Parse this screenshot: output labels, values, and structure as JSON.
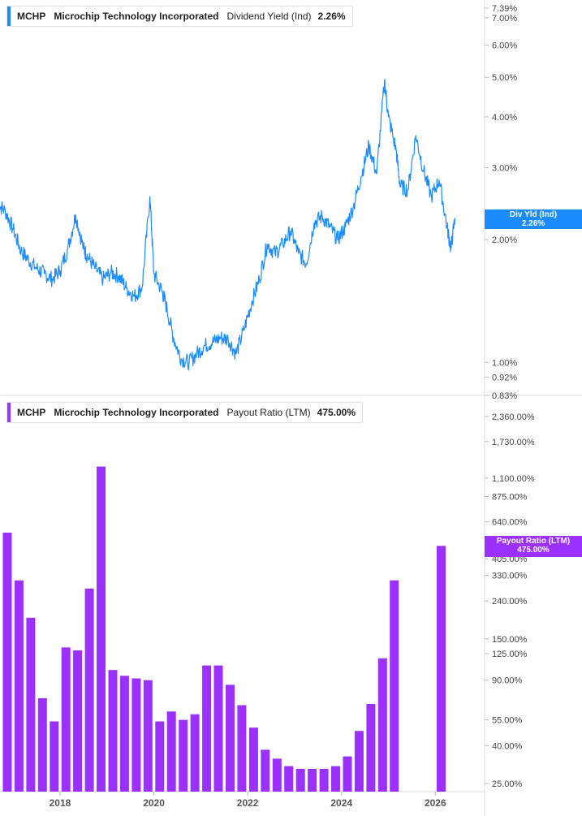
{
  "chart_data": [
    {
      "type": "line",
      "ticker": "MCHP",
      "company": "Microchip Technology Incorporated",
      "metric": "Dividend Yield (Ind)",
      "current_value": "2.26%",
      "tag_label": "Div Yld (Ind)",
      "color": "#1a8cff",
      "y_scale": "log",
      "ylim": [
        0.83,
        7.39
      ],
      "y_ticks": [
        "7.39%",
        "7.00%",
        "6.00%",
        "5.00%",
        "4.00%",
        "3.00%",
        "2.00%",
        "1.00%",
        "0.92%",
        "0.83%"
      ],
      "x_label_ticks": [
        "2018",
        "2020",
        "2022",
        "2024",
        "2026"
      ],
      "series": [
        {
          "x": [
            "2016-09",
            "2016-11",
            "2017-01",
            "2017-03",
            "2017-05",
            "2017-07",
            "2017-09",
            "2017-11",
            "2018-01",
            "2018-03",
            "2018-05",
            "2018-07",
            "2018-08",
            "2018-10",
            "2018-12",
            "2019-02",
            "2019-04",
            "2019-06",
            "2019-08",
            "2019-10",
            "2019-12",
            "2020-01",
            "2020-03",
            "2020-04",
            "2020-06",
            "2020-08",
            "2020-10",
            "2020-12",
            "2021-02",
            "2021-04",
            "2021-06",
            "2021-08",
            "2021-10",
            "2021-12",
            "2022-02",
            "2022-04",
            "2022-06",
            "2022-08",
            "2022-10",
            "2022-12",
            "2023-02",
            "2023-04",
            "2023-06",
            "2023-08",
            "2023-10",
            "2023-12",
            "2024-02",
            "2024-04",
            "2024-06",
            "2024-08",
            "2024-10",
            "2024-12",
            "2025-01",
            "2025-03",
            "2025-04",
            "2025-06",
            "2025-08",
            "2025-10",
            "2025-12",
            "2026-02",
            "2026-04",
            "2026-05",
            "2026-06"
          ],
          "values": [
            2.45,
            2.35,
            2.12,
            1.88,
            1.78,
            1.7,
            1.65,
            1.6,
            1.68,
            1.9,
            2.3,
            1.9,
            1.82,
            1.7,
            1.6,
            1.66,
            1.63,
            1.52,
            1.45,
            1.53,
            2.55,
            1.65,
            1.5,
            1.4,
            1.15,
            1.02,
            1.0,
            1.05,
            1.1,
            1.12,
            1.15,
            1.14,
            1.05,
            1.2,
            1.4,
            1.6,
            1.95,
            1.85,
            1.95,
            2.1,
            1.85,
            1.75,
            2.2,
            2.28,
            2.15,
            2.0,
            2.15,
            2.4,
            2.85,
            3.4,
            2.9,
            4.9,
            4.0,
            3.3,
            2.7,
            2.65,
            3.6,
            2.95,
            2.55,
            2.8,
            2.15,
            1.9,
            2.26
          ]
        }
      ]
    },
    {
      "type": "bar",
      "ticker": "MCHP",
      "company": "Microchip Technology Incorporated",
      "metric": "Payout Ratio (LTM)",
      "current_value": "475.00%",
      "tag_label": "Payout Ratio (LTM)",
      "color": "#9b30ff",
      "y_scale": "log",
      "y_ticks": [
        "2,360.00%",
        "1,730.00%",
        "1,100.00%",
        "875.00%",
        "640.00%",
        "405.00%",
        "330.00%",
        "240.00%",
        "150.00%",
        "125.00%",
        "90.00%",
        "55.00%",
        "40.00%",
        "25.00%"
      ],
      "x_label_ticks": [
        "2018",
        "2020",
        "2022",
        "2024",
        "2026"
      ],
      "categories": [
        "2016-Q4",
        "2017-Q1",
        "2017-Q2",
        "2017-Q3",
        "2017-Q4",
        "2018-Q1",
        "2018-Q2",
        "2018-Q3",
        "2018-Q4",
        "2019-Q1",
        "2019-Q2",
        "2019-Q3",
        "2019-Q4",
        "2020-Q1",
        "2020-Q2",
        "2020-Q3",
        "2020-Q4",
        "2021-Q1",
        "2021-Q2",
        "2021-Q3",
        "2021-Q4",
        "2022-Q1",
        "2022-Q2",
        "2022-Q3",
        "2022-Q4",
        "2023-Q1",
        "2023-Q2",
        "2023-Q3",
        "2023-Q4",
        "2024-Q1",
        "2024-Q2",
        "2024-Q3",
        "2024-Q4",
        "2025-Q1",
        "2026-Q1"
      ],
      "values": [
        560,
        310,
        195,
        72,
        54,
        135,
        130,
        280,
        1270,
        102,
        95,
        92,
        90,
        54,
        61,
        55,
        59,
        108,
        108,
        85,
        66,
        50,
        38,
        34,
        31,
        30,
        30,
        30,
        31,
        35,
        48,
        67,
        118,
        310,
        475
      ]
    }
  ]
}
